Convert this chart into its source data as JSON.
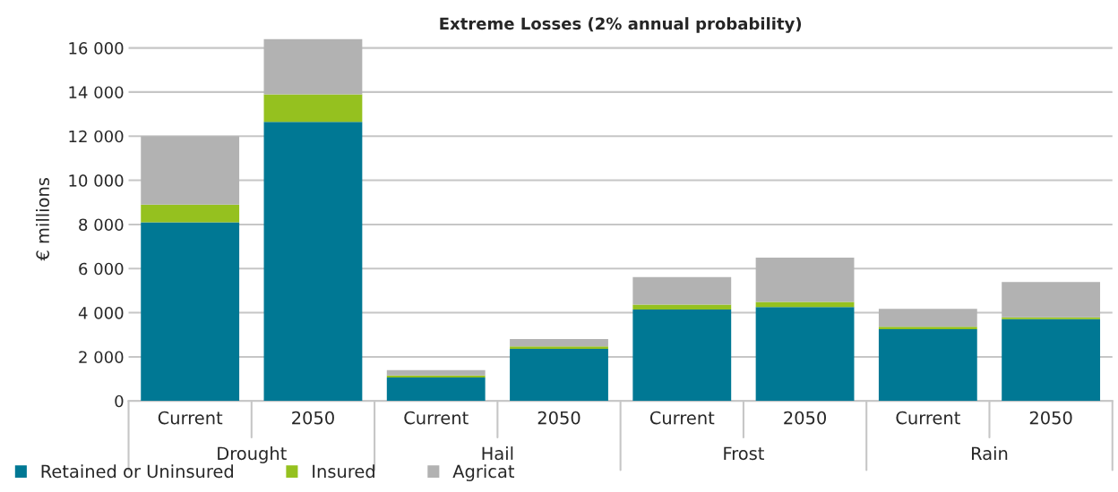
{
  "chart_data": {
    "type": "bar",
    "title": "Extreme Losses (2% annual probability)",
    "ylabel": "€ millions",
    "stacked": true,
    "categories": [
      "Current",
      "2050",
      "Current",
      "2050",
      "Current",
      "2050",
      "Current",
      "2050"
    ],
    "annotations": [
      "Drought",
      "Hail",
      "Frost",
      "Rain"
    ],
    "series": [
      {
        "name": "Retained or Uninsured",
        "color": "#007894",
        "values": [
          8100,
          12650,
          1060,
          2360,
          4150,
          4260,
          3250,
          3710
        ]
      },
      {
        "name": "Insured",
        "color": "#95c11f",
        "values": [
          800,
          1250,
          100,
          110,
          220,
          230,
          110,
          80
        ]
      },
      {
        "name": "Agricat",
        "color": "#b2b2b2",
        "values": [
          3100,
          2500,
          240,
          340,
          1240,
          2010,
          820,
          1600
        ]
      }
    ],
    "ylim": [
      0,
      16500
    ],
    "yticks": [
      0,
      {
        "value": 2000,
        "label": "2 000"
      },
      {
        "value": 4000,
        "label": "4 000"
      },
      {
        "value": 6000,
        "label": "6 000"
      },
      {
        "value": 8000,
        "label": "8 000"
      },
      {
        "value": 10000,
        "label": "10 000"
      },
      {
        "value": 12000,
        "label": "12 000"
      },
      {
        "value": 14000,
        "label": "14 000"
      },
      {
        "value": 16000,
        "label": "16 000"
      }
    ],
    "grid": "y",
    "legend": "bottom left"
  }
}
